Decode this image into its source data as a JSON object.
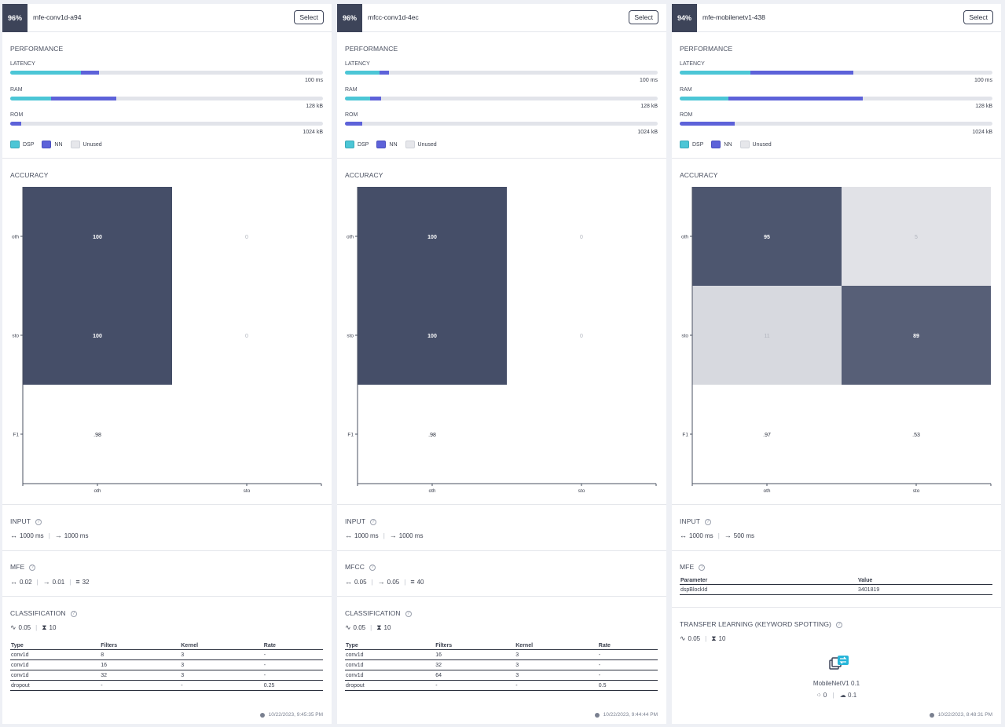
{
  "colors": {
    "dsp": "#4cc6d6",
    "nn": "#5d62d9",
    "unused": "#e2e4ea",
    "matrix_dark": "#454e68",
    "matrix_light": "#e9eaee"
  },
  "labels": {
    "performance": "PERFORMANCE",
    "latency": "LATENCY",
    "ram": "RAM",
    "rom": "ROM",
    "legend_dsp": "DSP",
    "legend_nn": "NN",
    "legend_unused": "Unused",
    "accuracy": "ACCURACY",
    "input": "INPUT",
    "classification": "CLASSIFICATION",
    "select": "Select",
    "col_type": "Type",
    "col_filters": "Filters",
    "col_kernel": "Kernel",
    "col_rate": "Rate",
    "col_parameter": "Parameter",
    "col_value": "Value"
  },
  "cards": [
    {
      "accuracy_pct": "96%",
      "name": "mfe-conv1d-a94",
      "latency": {
        "dsp": 0.225,
        "nn": 0.06,
        "max": "100 ms"
      },
      "ram": {
        "dsp": 0.13,
        "nn": 0.21,
        "max": "128 kB"
      },
      "rom": {
        "dsp": 0.0,
        "nn": 0.035,
        "max": "1024 kB"
      },
      "matrix": {
        "rows": [
          "oth",
          "sto",
          "F1"
        ],
        "cols": [
          "oth",
          "sto"
        ],
        "cells": [
          [
            "100",
            "0"
          ],
          [
            "100",
            "0"
          ]
        ],
        "intensity": [
          [
            1.0,
            0.0
          ],
          [
            1.0,
            0.0
          ]
        ],
        "f1": [
          ".98",
          ""
        ]
      },
      "input": {
        "window": "1000 ms",
        "stride": "1000 ms"
      },
      "dsp_title": "MFE",
      "dsp_params": {
        "frame_length": "0.02",
        "frame_stride": "0.01",
        "filters": "32"
      },
      "class_params": {
        "learning_rate": "0.05",
        "epochs": "10"
      },
      "layers": [
        [
          "conv1d",
          "8",
          "3",
          "-"
        ],
        [
          "conv1d",
          "16",
          "3",
          "-"
        ],
        [
          "conv1d",
          "32",
          "3",
          "-"
        ],
        [
          "dropout",
          "-",
          "-",
          "0.25"
        ]
      ],
      "timestamp": "10/22/2023, 9:45:35 PM"
    },
    {
      "accuracy_pct": "96%",
      "name": "mfcc-conv1d-4ec",
      "latency": {
        "dsp": 0.11,
        "nn": 0.03,
        "max": "100 ms"
      },
      "ram": {
        "dsp": 0.08,
        "nn": 0.035,
        "max": "128 kB"
      },
      "rom": {
        "dsp": 0.0,
        "nn": 0.055,
        "max": "1024 kB"
      },
      "matrix": {
        "rows": [
          "oth",
          "sto",
          "F1"
        ],
        "cols": [
          "oth",
          "sto"
        ],
        "cells": [
          [
            "100",
            "0"
          ],
          [
            "100",
            "0"
          ]
        ],
        "intensity": [
          [
            1.0,
            0.0
          ],
          [
            1.0,
            0.0
          ]
        ],
        "f1": [
          ".98",
          ""
        ]
      },
      "input": {
        "window": "1000 ms",
        "stride": "1000 ms"
      },
      "dsp_title": "MFCC",
      "dsp_params": {
        "frame_length": "0.05",
        "frame_stride": "0.05",
        "filters": "40"
      },
      "class_params": {
        "learning_rate": "0.05",
        "epochs": "10"
      },
      "layers": [
        [
          "conv1d",
          "16",
          "3",
          "-"
        ],
        [
          "conv1d",
          "32",
          "3",
          "-"
        ],
        [
          "conv1d",
          "64",
          "3",
          "-"
        ],
        [
          "dropout",
          "-",
          "-",
          "0.5"
        ]
      ],
      "timestamp": "10/22/2023, 9:44:44 PM"
    },
    {
      "accuracy_pct": "94%",
      "name": "mfe-mobilenetv1-438",
      "latency": {
        "dsp": 0.225,
        "nn": 0.33,
        "max": "100 ms"
      },
      "ram": {
        "dsp": 0.155,
        "nn": 0.43,
        "max": "128 kB"
      },
      "rom": {
        "dsp": 0.0,
        "nn": 0.175,
        "max": "1024 kB"
      },
      "matrix": {
        "rows": [
          "oth",
          "sto",
          "F1"
        ],
        "cols": [
          "oth",
          "sto"
        ],
        "cells": [
          [
            "95",
            "5"
          ],
          [
            "11",
            "89"
          ]
        ],
        "intensity": [
          [
            0.95,
            0.05
          ],
          [
            0.11,
            0.89
          ]
        ],
        "f1": [
          ".97",
          ".53"
        ]
      },
      "input": {
        "window": "1000 ms",
        "stride": "500 ms"
      },
      "dsp_title": "MFE",
      "dsp_table": [
        [
          "dspBlockId",
          "3401819"
        ]
      ],
      "tl_title": "TRANSFER LEARNING (KEYWORD SPOTTING)",
      "class_params": {
        "learning_rate": "0.05",
        "epochs": "10"
      },
      "tl_model": "MobileNetV1 0.1",
      "tl_stats": {
        "neurons": "0",
        "dropout": "0.1"
      },
      "timestamp": "10/22/2023, 8:48:31 PM"
    }
  ]
}
